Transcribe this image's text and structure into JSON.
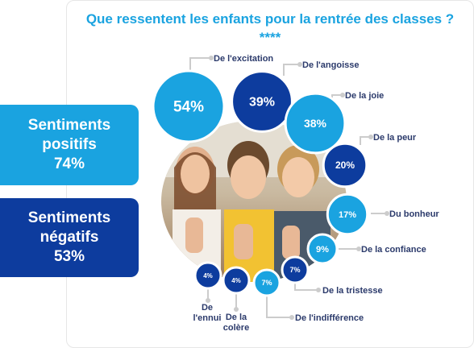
{
  "title": "Que ressentent les enfants pour la rentrée des classes ? ****",
  "summary": {
    "positive": {
      "line1": "Sentiments",
      "line2": "positifs",
      "value": "74%"
    },
    "negative": {
      "line1": "Sentiments",
      "line2": "négatifs",
      "value": "53%"
    }
  },
  "colors": {
    "positive": "#1aa3e0",
    "negative": "#0d3c9e",
    "leader": "#cccccc",
    "label": "#2b3a6b"
  },
  "chart_data": {
    "type": "bubble",
    "title": "Que ressentent les enfants pour la rentrée des classes ? ****",
    "points": [
      {
        "label": "De l'excitation",
        "value": 54,
        "display": "54%",
        "polarity": "positive"
      },
      {
        "label": "De l'angoisse",
        "value": 39,
        "display": "39%",
        "polarity": "negative"
      },
      {
        "label": "De la joie",
        "value": 38,
        "display": "38%",
        "polarity": "positive"
      },
      {
        "label": "De la peur",
        "value": 20,
        "display": "20%",
        "polarity": "negative"
      },
      {
        "label": "Du bonheur",
        "value": 17,
        "display": "17%",
        "polarity": "positive"
      },
      {
        "label": "De la confiance",
        "value": 9,
        "display": "9%",
        "polarity": "positive"
      },
      {
        "label": "De la tristesse",
        "value": 7,
        "display": "7%",
        "polarity": "negative"
      },
      {
        "label": "De l'indifférence",
        "value": 7,
        "display": "7%",
        "polarity": "positive"
      },
      {
        "label": "De la colère",
        "value": 4,
        "display": "4%",
        "polarity": "negative"
      },
      {
        "label": "De l'ennui",
        "value": 4,
        "display": "4%",
        "polarity": "negative"
      }
    ],
    "summary": [
      {
        "label": "Sentiments positifs",
        "value": 74
      },
      {
        "label": "Sentiments négatifs",
        "value": 53
      }
    ]
  }
}
